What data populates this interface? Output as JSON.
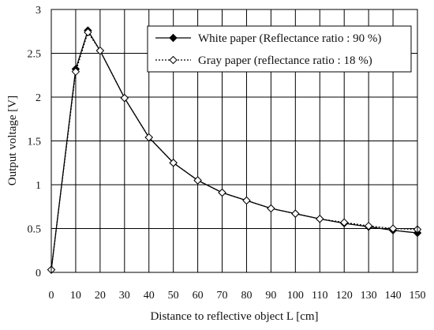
{
  "chart_data": {
    "type": "line",
    "xlabel": "Distance to reflective object L [cm]",
    "ylabel": "Output voltage [V]",
    "xlim": [
      0,
      150
    ],
    "ylim": [
      0,
      3
    ],
    "xticks": [
      "0",
      "10",
      "20",
      "30",
      "40",
      "50",
      "60",
      "70",
      "80",
      "90",
      "100",
      "110",
      "120",
      "130",
      "140",
      "150"
    ],
    "yticks": [
      "0",
      "0.5",
      "1",
      "1.5",
      "2",
      "2.5",
      "3"
    ],
    "grid": true,
    "legend_position": "top-right",
    "x": [
      0,
      10,
      15,
      20,
      30,
      40,
      50,
      60,
      70,
      80,
      90,
      100,
      110,
      120,
      130,
      140,
      150
    ],
    "series": [
      {
        "name": "White paper (Reflectance ratio : 90 %)",
        "style": "solid",
        "marker": "filled-diamond",
        "values": [
          0.03,
          2.32,
          2.76,
          2.53,
          1.99,
          1.54,
          1.25,
          1.05,
          0.91,
          0.82,
          0.73,
          0.67,
          0.61,
          0.56,
          0.52,
          0.48,
          0.45
        ]
      },
      {
        "name": "Gray paper (reflectance ratio : 18 %)",
        "style": "dotted",
        "marker": "open-diamond",
        "values": [
          0.03,
          2.29,
          2.74,
          2.53,
          1.99,
          1.54,
          1.25,
          1.05,
          0.91,
          0.82,
          0.73,
          0.67,
          0.61,
          0.57,
          0.53,
          0.5,
          0.49
        ]
      }
    ],
    "colors": {
      "line": "#000000",
      "grid": "#000000",
      "legend_bg": "#ffffff"
    }
  }
}
